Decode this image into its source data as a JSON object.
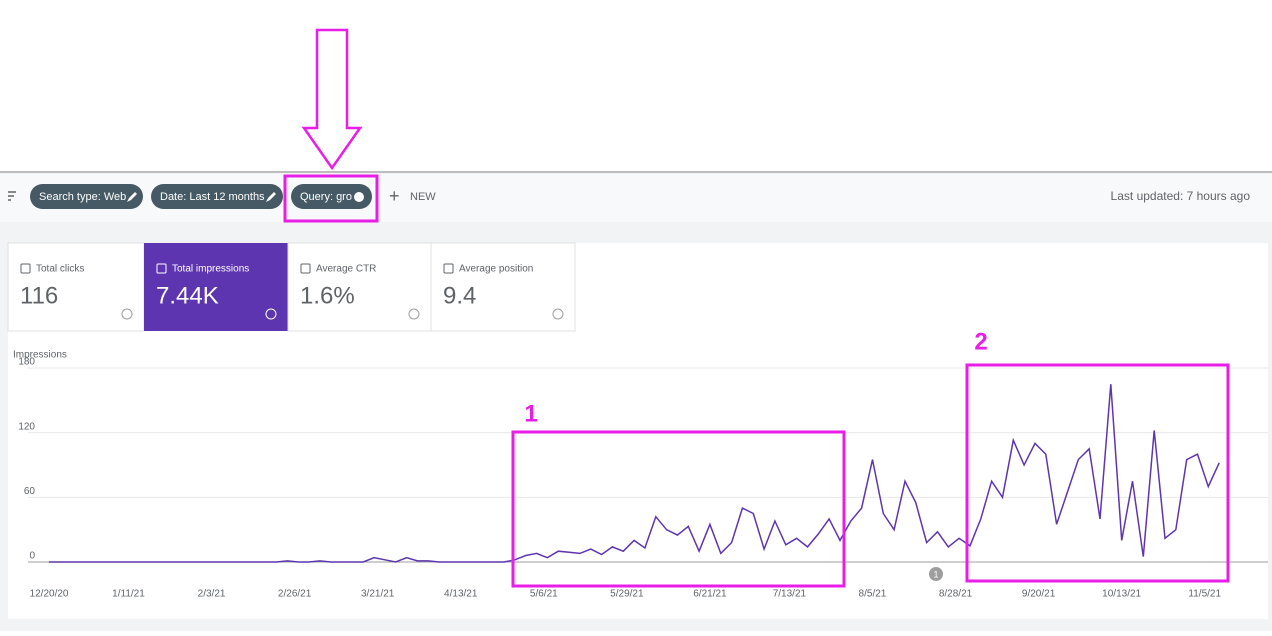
{
  "toolbar": {
    "chips": [
      "Search type: Web",
      "Date: Last 12 months",
      "Query: gro"
    ],
    "new_button": "NEW",
    "last_updated": "Last updated: 7 hours ago"
  },
  "metrics": [
    {
      "label": "Total clicks",
      "value": "116"
    },
    {
      "label": "Total impressions",
      "value": "7.44K"
    },
    {
      "label": "Average CTR",
      "value": "1.6%"
    },
    {
      "label": "Average position",
      "value": "9.4"
    }
  ],
  "annotations": {
    "box1": "1",
    "box2": "2",
    "event_marker": "1"
  },
  "chart_data": {
    "type": "line",
    "y_label": "Impressions",
    "color": "#5e35b1",
    "xlim": [
      -2.5,
      327
    ],
    "xticks": [
      {
        "value": 0,
        "label": "12/20/20"
      },
      {
        "value": 22,
        "label": "1/11/21"
      },
      {
        "value": 45,
        "label": "2/3/21"
      },
      {
        "value": 68,
        "label": "2/26/21"
      },
      {
        "value": 91,
        "label": "3/21/21"
      },
      {
        "value": 114,
        "label": "4/13/21"
      },
      {
        "value": 137,
        "label": "5/6/21"
      },
      {
        "value": 160,
        "label": "5/29/21"
      },
      {
        "value": 183,
        "label": "6/21/21"
      },
      {
        "value": 205,
        "label": "7/13/21"
      },
      {
        "value": 228,
        "label": "8/5/21"
      },
      {
        "value": 251,
        "label": "8/28/21"
      },
      {
        "value": 274,
        "label": "9/20/21"
      },
      {
        "value": 297,
        "label": "10/13/21"
      },
      {
        "value": 320,
        "label": "11/5/21"
      }
    ],
    "ylim": [
      0,
      180
    ],
    "yticks": [
      0,
      60,
      120,
      180
    ],
    "grid": true,
    "x": [
      0,
      3,
      6,
      9,
      12,
      15,
      18,
      21,
      24,
      27,
      30,
      33,
      36,
      39,
      42,
      45,
      48,
      51,
      54,
      57,
      60,
      63,
      66,
      69,
      72,
      75,
      78,
      81,
      84,
      87,
      90,
      93,
      96,
      99,
      102,
      105,
      108,
      111,
      114,
      117,
      120,
      123,
      126,
      129,
      132,
      135,
      138,
      141,
      144,
      147,
      150,
      153,
      156,
      159,
      162,
      165,
      168,
      171,
      174,
      177,
      180,
      183,
      186,
      189,
      192,
      195,
      198,
      201,
      204,
      207,
      210,
      213,
      216,
      219,
      222,
      225,
      228,
      231,
      234,
      237,
      240,
      243,
      246,
      249,
      252,
      255,
      258,
      261,
      264,
      267,
      270,
      273,
      276,
      279,
      282,
      285,
      288,
      291,
      294,
      297,
      300,
      303,
      306,
      309,
      312,
      315,
      318,
      321,
      324
    ],
    "values": [
      0,
      0,
      0,
      0,
      0,
      0,
      0,
      0,
      0,
      0,
      0,
      0,
      0,
      0,
      0,
      0,
      0,
      0,
      0,
      0,
      0,
      0,
      1,
      0,
      0,
      1,
      0,
      0,
      0,
      0,
      4,
      2,
      0,
      4,
      1,
      1,
      0,
      0,
      0,
      0,
      0,
      0,
      0,
      2,
      6,
      8,
      4,
      10,
      9,
      8,
      12,
      7,
      14,
      10,
      20,
      13,
      42,
      30,
      25,
      33,
      10,
      35,
      8,
      18,
      50,
      45,
      12,
      38,
      16,
      22,
      14,
      26,
      40,
      20,
      38,
      50,
      95,
      45,
      30,
      75,
      55,
      18,
      28,
      14,
      22,
      15,
      40,
      75,
      60,
      113,
      90,
      110,
      100,
      35,
      65,
      95,
      105,
      40,
      165,
      20,
      75,
      5,
      122,
      22,
      30,
      95,
      100,
      70,
      92
    ]
  }
}
